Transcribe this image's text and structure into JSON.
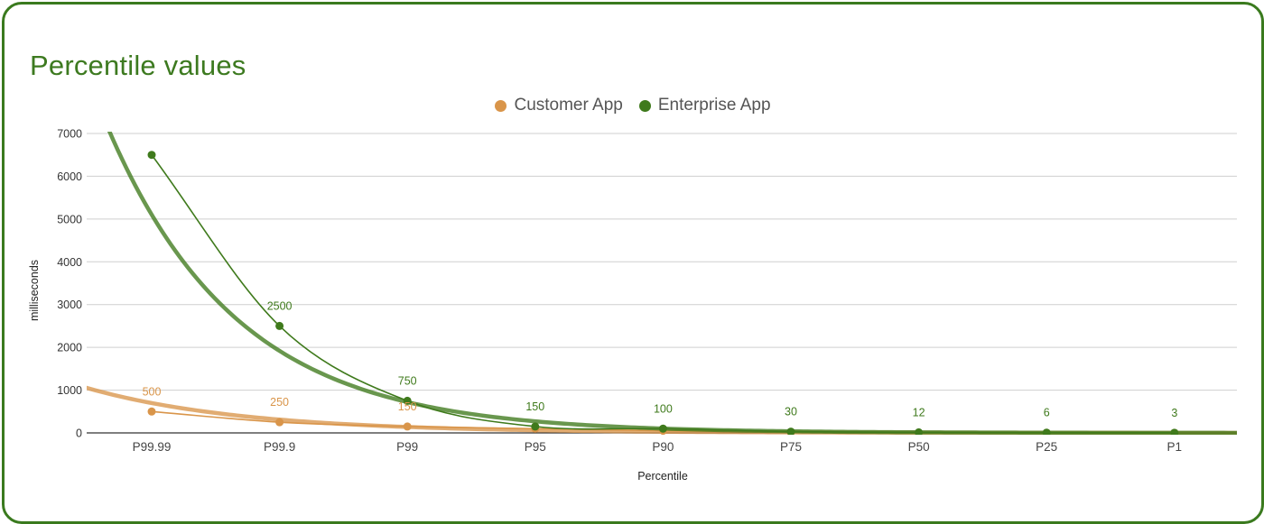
{
  "chart_data": {
    "type": "line",
    "title": "Percentile values",
    "xlabel": "Percentile",
    "ylabel": "milliseconds",
    "categories": [
      "P99.99",
      "P99.9",
      "P99",
      "P95",
      "P90",
      "P75",
      "P50",
      "P25",
      "P1"
    ],
    "ylim": [
      0,
      7000
    ],
    "yticks": [
      "0",
      "1000",
      "2000",
      "3000",
      "4000",
      "5000",
      "6000",
      "7000"
    ],
    "grid": true,
    "legend_position": "top-center",
    "trendlines": true,
    "series": [
      {
        "name": "Customer App",
        "color": "#d9954a",
        "values": [
          500,
          250,
          150,
          100,
          50,
          10,
          5,
          2,
          1
        ],
        "labels": [
          "500",
          "250",
          "150",
          "",
          "",
          "",
          "",
          "",
          ""
        ]
      },
      {
        "name": "Enterprise App",
        "color": "#3f7a1c",
        "values": [
          6500,
          2500,
          750,
          150,
          100,
          30,
          12,
          6,
          3
        ],
        "labels": [
          "",
          "2500",
          "750",
          "150",
          "100",
          "30",
          "12",
          "6",
          "3"
        ]
      }
    ]
  }
}
